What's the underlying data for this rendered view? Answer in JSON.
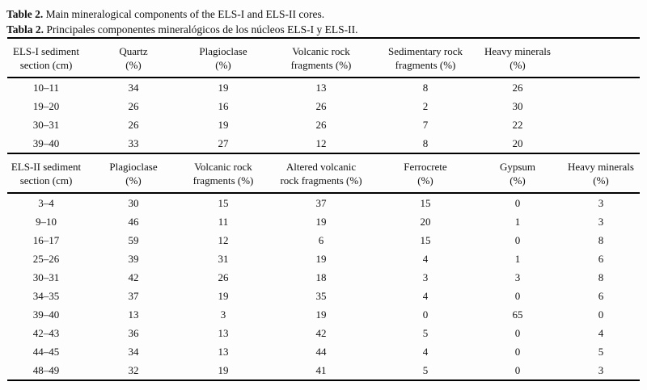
{
  "caption": {
    "en_label": "Table 2.",
    "en_text": " Main mineralogical components of the ELS-I and ELS-II cores.",
    "es_label": "Tabla 2.",
    "es_text": " Principales componentes mineralógicos de los núcleos ELS-I y ELS-II."
  },
  "table1": {
    "headers": [
      [
        "ELS-I sediment",
        "section (cm)"
      ],
      [
        "Quartz",
        "(%)"
      ],
      [
        "Plagioclase",
        "(%)"
      ],
      [
        "Volcanic rock",
        "fragments (%)"
      ],
      [
        "Sedimentary rock",
        "fragments (%)"
      ],
      [
        "Heavy minerals",
        "(%)"
      ]
    ],
    "rows": [
      [
        "10–11",
        "34",
        "19",
        "13",
        "8",
        "26"
      ],
      [
        "19–20",
        "26",
        "16",
        "26",
        "2",
        "30"
      ],
      [
        "30–31",
        "26",
        "19",
        "26",
        "7",
        "22"
      ],
      [
        "39–40",
        "33",
        "27",
        "12",
        "8",
        "20"
      ]
    ]
  },
  "table2": {
    "headers": [
      [
        "ELS-II sediment",
        "section (cm)"
      ],
      [
        "Plagioclase",
        "(%)"
      ],
      [
        "Volcanic rock",
        "fragments (%)"
      ],
      [
        "Altered volcanic",
        "rock fragments (%)"
      ],
      [
        "Ferrocrete",
        "(%)"
      ],
      [
        "Gypsum",
        "(%)"
      ],
      [
        "Heavy minerals",
        "(%)"
      ]
    ],
    "rows": [
      [
        "3–4",
        "30",
        "15",
        "37",
        "15",
        "0",
        "3"
      ],
      [
        "9–10",
        "46",
        "11",
        "19",
        "20",
        "1",
        "3"
      ],
      [
        "16–17",
        "59",
        "12",
        "6",
        "15",
        "0",
        "8"
      ],
      [
        "25–26",
        "39",
        "31",
        "19",
        "4",
        "1",
        "6"
      ],
      [
        "30–31",
        "42",
        "26",
        "18",
        "3",
        "3",
        "8"
      ],
      [
        "34–35",
        "37",
        "19",
        "35",
        "4",
        "0",
        "6"
      ],
      [
        "39–40",
        "13",
        "3",
        "19",
        "0",
        "65",
        "0"
      ],
      [
        "42–43",
        "36",
        "13",
        "42",
        "5",
        "0",
        "4"
      ],
      [
        "44–45",
        "34",
        "13",
        "44",
        "4",
        "0",
        "5"
      ],
      [
        "48–49",
        "32",
        "19",
        "41",
        "5",
        "0",
        "3"
      ]
    ]
  }
}
